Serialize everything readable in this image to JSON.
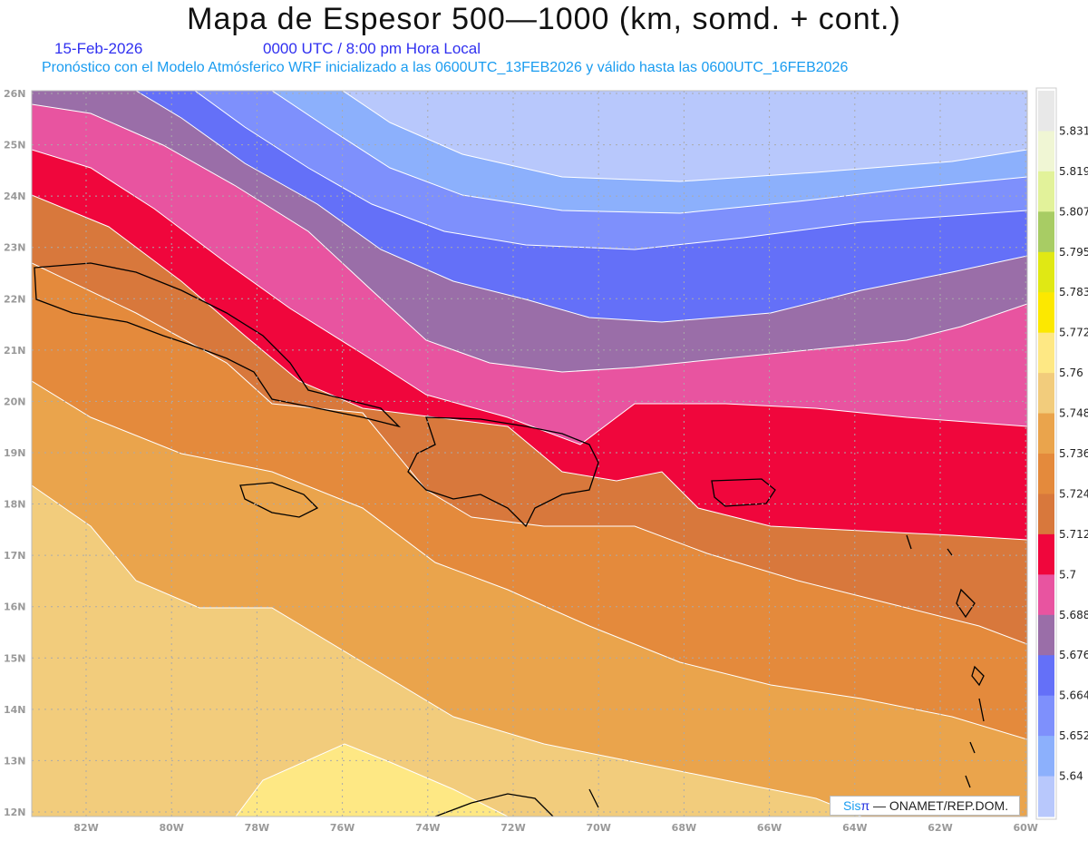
{
  "header": {
    "title": "Mapa de Espesor 500—1000 (km, somd. + cont.)",
    "date": "15-Feb-2026",
    "time": "0000 UTC / 8:00 pm Hora Local",
    "forecast_info": "Pronóstico con el Modelo Atmósferico WRF inicializado a las 0600UTC_13FEB2026 y válido hasta las  0600UTC_16FEB2026"
  },
  "map": {
    "region": "Caribe",
    "lon_labels": [
      "82W",
      "80W",
      "78W",
      "76W",
      "74W",
      "72W",
      "70W",
      "68W",
      "66W",
      "64W",
      "62W",
      "60W"
    ],
    "lat_labels": [
      "26N",
      "25N",
      "24N",
      "23N",
      "22N",
      "21N",
      "20N",
      "19N",
      "18N",
      "17N",
      "16N",
      "15N",
      "14N",
      "13N",
      "12N"
    ]
  },
  "colorbar": {
    "labels": [
      "5.831",
      "5.819",
      "5.807",
      "5.795",
      "5.783",
      "5.772",
      "5.76",
      "5.748",
      "5.736",
      "5.724",
      "5.712",
      "5.7",
      "5.688",
      "5.676",
      "5.664",
      "5.652",
      "5.64"
    ],
    "colors": [
      "#e8e8e8",
      "#f0f6d4",
      "#e2f29a",
      "#a8cc64",
      "#e0e814",
      "#fce800",
      "#fee884",
      "#f2cc7c",
      "#eaa44c",
      "#e48a3c",
      "#d8783c",
      "#f0063c",
      "#e854a0",
      "#9a6ea8",
      "#6470f8",
      "#7e90fc",
      "#8cb0fc",
      "#b8c8fc"
    ]
  },
  "logo": {
    "brand": "Sis",
    "pi": "π",
    "text": " —  ONAMET/REP.DOM."
  }
}
